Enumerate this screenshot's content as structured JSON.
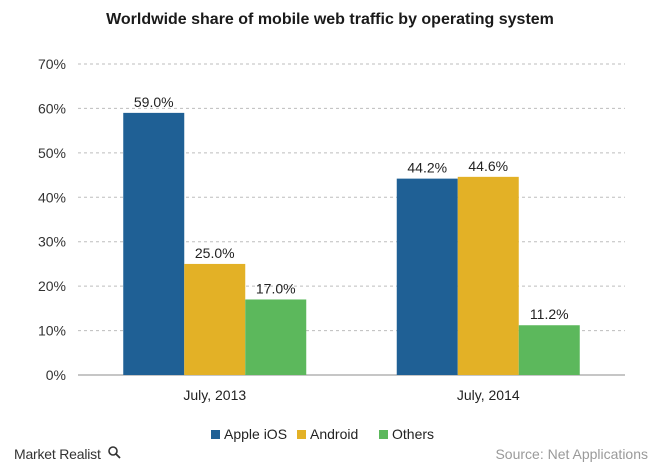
{
  "chart_data": {
    "type": "bar",
    "title": "Worldwide share of mobile web traffic by operating system",
    "categories": [
      "July, 2013",
      "July, 2014"
    ],
    "series": [
      {
        "name": "Apple iOS",
        "color": "#1f6095",
        "values": [
          59.0,
          44.2
        ],
        "labels": [
          "59.0%",
          "44.2%"
        ]
      },
      {
        "name": "Android",
        "color": "#e3b126",
        "values": [
          25.0,
          44.6
        ],
        "labels": [
          "25.0%",
          "44.6%"
        ]
      },
      {
        "name": "Others",
        "color": "#5cb85c",
        "values": [
          17.0,
          11.2
        ],
        "labels": [
          "17.0%",
          "11.2%"
        ]
      }
    ],
    "ylim": [
      0,
      70
    ],
    "yticks": [
      "0%",
      "10%",
      "20%",
      "30%",
      "40%",
      "50%",
      "60%",
      "70%"
    ],
    "grid": true,
    "legend_position": "bottom-center",
    "xlabel": "",
    "ylabel": ""
  },
  "footer": {
    "brand": "Market Realist",
    "brand_icon": "magnifier-icon",
    "source": "Source: Net Applications"
  }
}
